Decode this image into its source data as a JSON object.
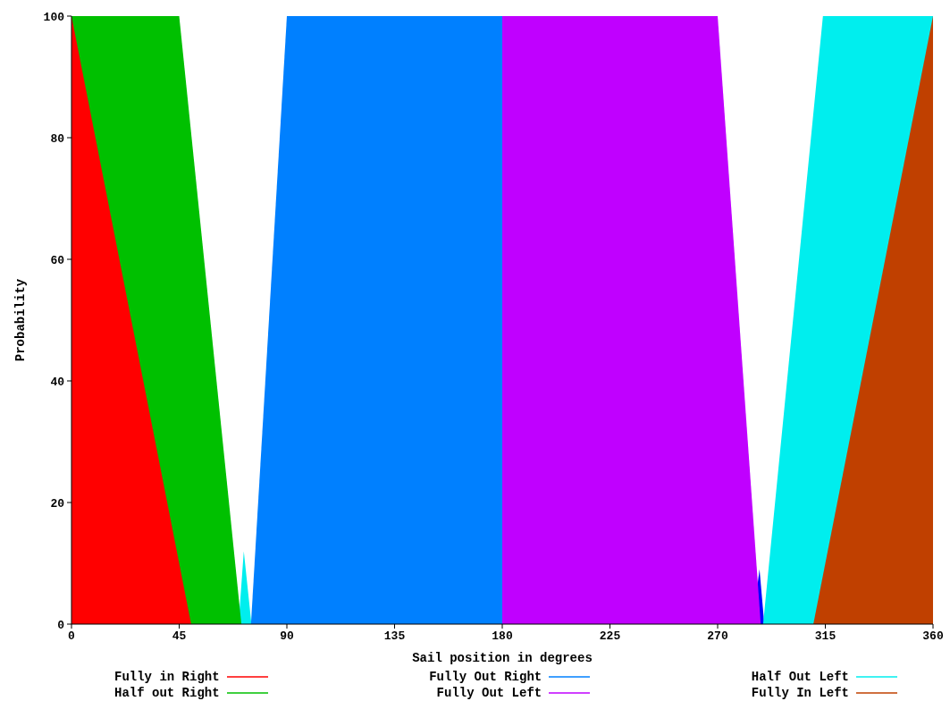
{
  "chart_data": {
    "type": "area",
    "xlabel": "Sail position in degrees",
    "ylabel": "Probability",
    "xlim": [
      0,
      360
    ],
    "xticks": [
      0,
      45,
      90,
      135,
      180,
      225,
      270,
      315,
      360
    ],
    "ylim": [
      0,
      100
    ],
    "yticks": [
      0,
      20,
      40,
      60,
      80,
      100
    ],
    "grid": false,
    "legend": "bottom",
    "series": [
      {
        "color": "#0000ff",
        "x": [
          284.5,
          287.5,
          289.5
        ],
        "values": [
          0,
          9,
          0
        ]
      },
      {
        "name": "Half Out Left",
        "color": "#00eeee",
        "x": [
          69.8,
          72,
          75.2,
          289,
          314,
          360
        ],
        "values": [
          0,
          12,
          0,
          0,
          100,
          100
        ]
      },
      {
        "name": "Fully In Left",
        "color": "#c04000",
        "x": [
          310,
          360
        ],
        "values": [
          0,
          100
        ]
      },
      {
        "name": "Half out Right",
        "color": "#00c000",
        "x": [
          0,
          45,
          71
        ],
        "values": [
          100,
          100,
          0
        ]
      },
      {
        "name": "Fully in Right",
        "color": "#ff0000",
        "x": [
          0,
          50
        ],
        "values": [
          100,
          0
        ]
      },
      {
        "name": "Fully Out Right",
        "color": "#0080ff",
        "x": [
          75,
          90,
          180,
          180
        ],
        "values": [
          0,
          100,
          100,
          0
        ]
      },
      {
        "name": "Fully Out Left",
        "color": "#c000ff",
        "x": [
          180,
          270,
          288
        ],
        "values": [
          100,
          100,
          0
        ]
      }
    ]
  }
}
